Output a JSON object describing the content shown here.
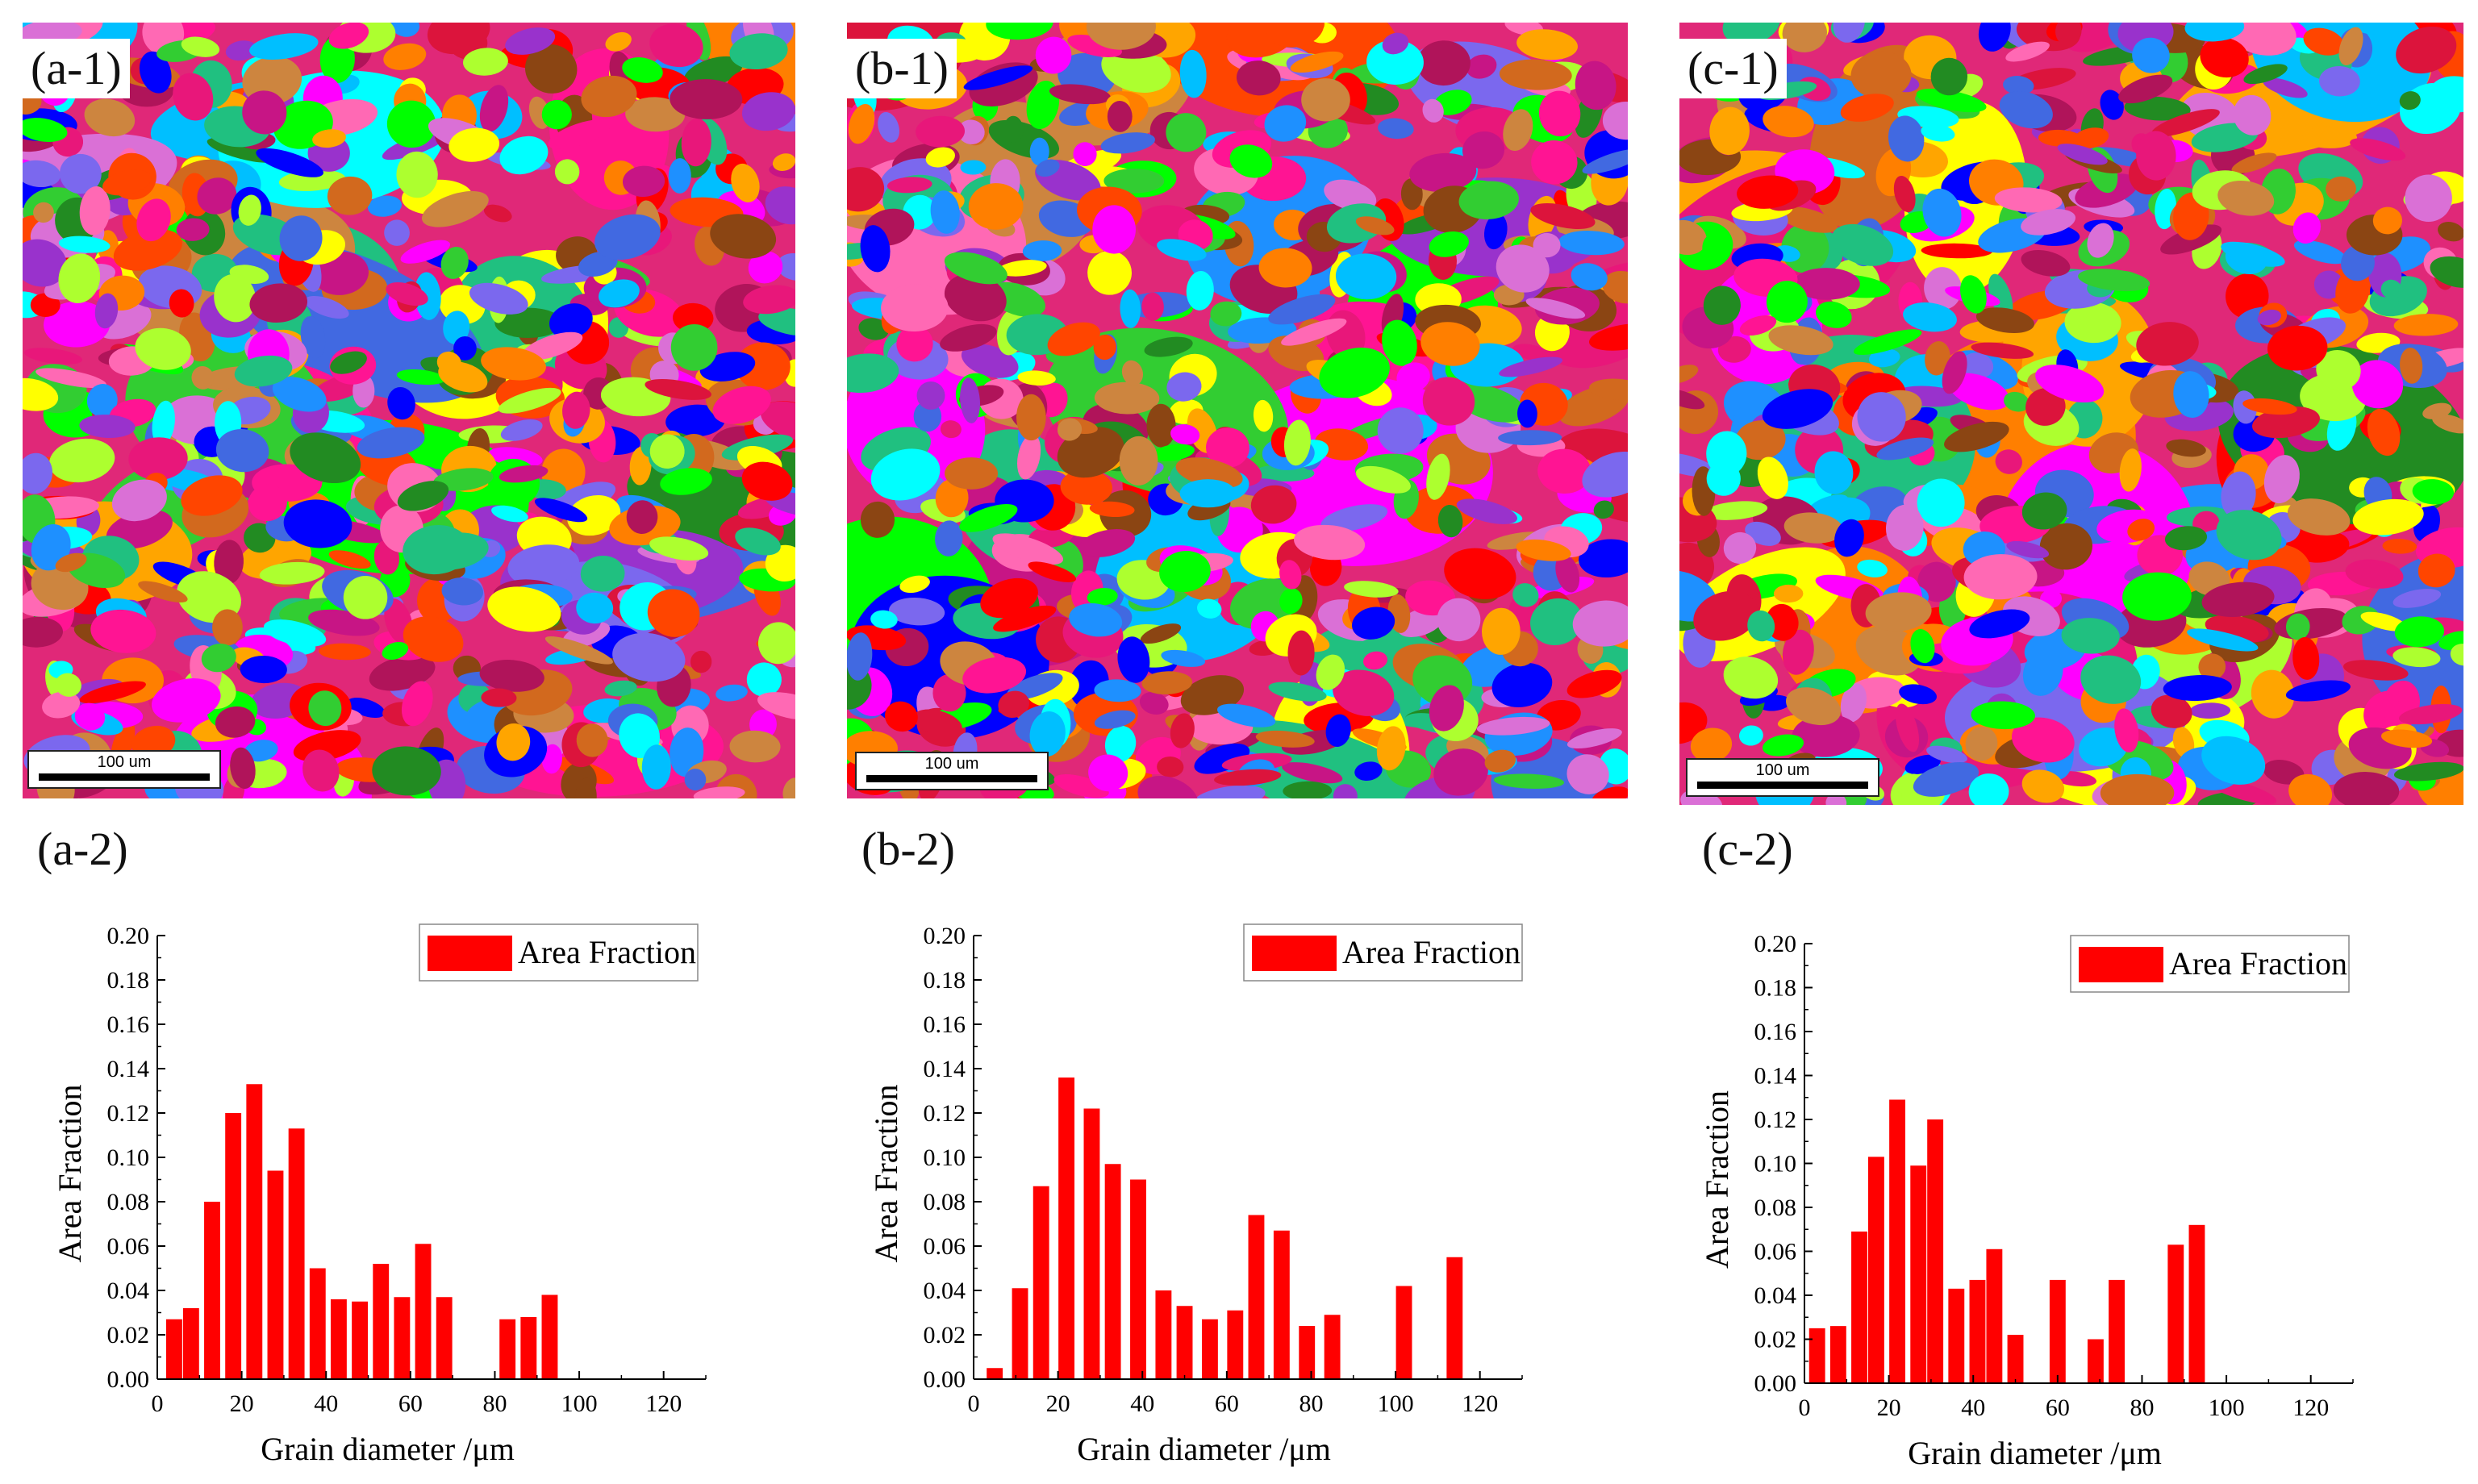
{
  "figure": {
    "maps": [
      {
        "label": "(a-1)",
        "scale_text": "100 um"
      },
      {
        "label": "(b-1)",
        "scale_text": "100 um"
      },
      {
        "label": "(c-1)",
        "scale_text": "100 um"
      }
    ],
    "chart_labels": [
      "(a-2)",
      "(b-2)",
      "(c-2)"
    ]
  },
  "colors": {
    "bar_fill": "#ff0000",
    "palette": [
      "#ff00ff",
      "#ffff00",
      "#00ff00",
      "#0000ff",
      "#00ffff",
      "#ff0000",
      "#e8177a",
      "#b0145a",
      "#1e90ff",
      "#ff7f00",
      "#9932cc",
      "#ff69b4",
      "#228b22",
      "#20c080",
      "#d2691e",
      "#cd853f",
      "#ff1493",
      "#7b68ee",
      "#ffa500",
      "#32cd32",
      "#dc143c",
      "#4169e1",
      "#c71585",
      "#ff4500",
      "#da70d6",
      "#00bfff",
      "#8b4513",
      "#adff2f"
    ]
  },
  "chart_data": [
    {
      "type": "bar",
      "title": "",
      "xlabel": "Grain diameter /μm",
      "ylabel": "Area Fraction",
      "legend": "Area Fraction",
      "xlim": [
        0,
        130
      ],
      "ylim": [
        0,
        0.2
      ],
      "xticks": [
        "0",
        "20",
        "40",
        "60",
        "80",
        "100",
        "120"
      ],
      "yticks": [
        "0.00",
        "0.02",
        "0.04",
        "0.06",
        "0.08",
        "0.10",
        "0.12",
        "0.14",
        "0.16",
        "0.18",
        "0.20"
      ],
      "x": [
        4,
        8,
        13,
        18,
        23,
        28,
        33,
        38,
        43,
        48,
        53,
        58,
        63,
        68,
        73,
        78,
        83,
        88,
        93
      ],
      "values": [
        0.027,
        0.032,
        0.08,
        0.12,
        0.133,
        0.094,
        0.113,
        0.05,
        0.036,
        0.035,
        0.052,
        0.037,
        0.061,
        0.037,
        0.0,
        0.0,
        0.027,
        0.028,
        0.038
      ]
    },
    {
      "type": "bar",
      "title": "",
      "xlabel": "Grain diameter /μm",
      "ylabel": "Area Fraction",
      "legend": "Area Fraction",
      "xlim": [
        0,
        130
      ],
      "ylim": [
        0,
        0.2
      ],
      "xticks": [
        "0",
        "20",
        "40",
        "60",
        "80",
        "100",
        "120"
      ],
      "yticks": [
        "0.00",
        "0.02",
        "0.04",
        "0.06",
        "0.08",
        "0.10",
        "0.12",
        "0.14",
        "0.16",
        "0.18",
        "0.20"
      ],
      "x": [
        5,
        11,
        16,
        22,
        28,
        33,
        39,
        45,
        50,
        56,
        62,
        67,
        73,
        79,
        85,
        90,
        96,
        102,
        114
      ],
      "values": [
        0.005,
        0.041,
        0.087,
        0.136,
        0.122,
        0.097,
        0.09,
        0.04,
        0.033,
        0.027,
        0.031,
        0.074,
        0.067,
        0.024,
        0.029,
        0.0,
        0.0,
        0.042,
        0.055
      ]
    },
    {
      "type": "bar",
      "title": "",
      "xlabel": "Grain diameter /μm",
      "ylabel": "Area Fraction",
      "legend": "Area Fraction",
      "xlim": [
        0,
        130
      ],
      "ylim": [
        0,
        0.2
      ],
      "xticks": [
        "0",
        "20",
        "40",
        "60",
        "80",
        "100",
        "120"
      ],
      "yticks": [
        "0.00",
        "0.02",
        "0.04",
        "0.06",
        "0.08",
        "0.10",
        "0.12",
        "0.14",
        "0.16",
        "0.18",
        "0.20"
      ],
      "x": [
        3,
        8,
        13,
        17,
        22,
        27,
        31,
        36,
        41,
        45,
        50,
        55,
        60,
        64,
        69,
        74,
        79,
        83,
        88,
        93
      ],
      "values": [
        0.025,
        0.026,
        0.069,
        0.103,
        0.129,
        0.099,
        0.12,
        0.043,
        0.047,
        0.061,
        0.022,
        0.0,
        0.047,
        0.0,
        0.02,
        0.047,
        0.0,
        0.0,
        0.063,
        0.072
      ]
    }
  ]
}
